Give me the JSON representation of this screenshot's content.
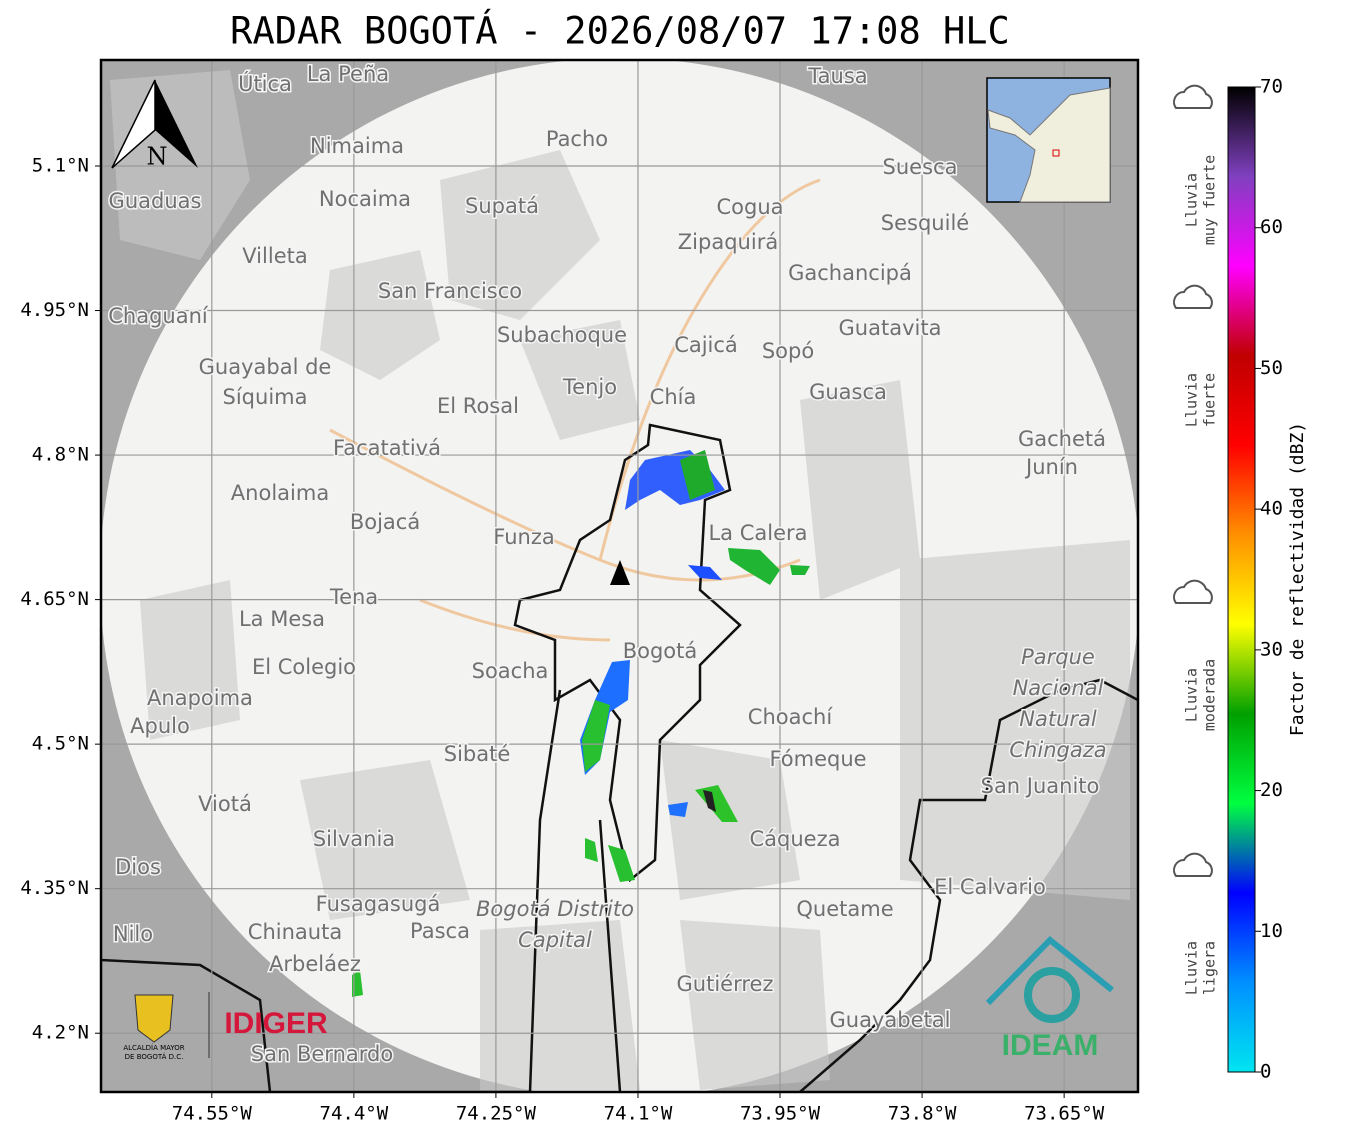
{
  "title": "RADAR BOGOTÁ - 2026/08/07 17:08 HLC",
  "map": {
    "xlim": [
      -74.667,
      -73.572
    ],
    "ylim": [
      4.139,
      5.21
    ],
    "xticks": [
      {
        "value": -74.55,
        "label": "74.55°W"
      },
      {
        "value": -74.4,
        "label": "74.4°W"
      },
      {
        "value": -74.25,
        "label": "74.25°W"
      },
      {
        "value": -74.1,
        "label": "74.1°W"
      },
      {
        "value": -73.95,
        "label": "73.95°W"
      },
      {
        "value": -73.8,
        "label": "73.8°W"
      },
      {
        "value": -73.65,
        "label": "73.65°W"
      }
    ],
    "yticks": [
      {
        "value": 4.2,
        "label": "4.2°N"
      },
      {
        "value": 4.35,
        "label": "4.35°N"
      },
      {
        "value": 4.5,
        "label": "4.5°N"
      },
      {
        "value": 4.65,
        "label": "4.65°N"
      },
      {
        "value": 4.8,
        "label": "4.8°N"
      },
      {
        "value": 4.95,
        "label": "4.95°N"
      },
      {
        "value": 5.1,
        "label": "5.1°N"
      }
    ],
    "grid": true,
    "north": "N",
    "places": [
      "La Peña",
      "Útica",
      "Tausa",
      "Pacho",
      "Nimaima",
      "Suesca",
      "Guaduas",
      "Nocaima",
      "Supatá",
      "Cogua",
      "Sesquilé",
      "Zipaquirá",
      "Villeta",
      "Gachancipá",
      "San Francisco",
      "Chaguaní",
      "Guatavita",
      "Subachoque",
      "Cajicá",
      "Sopó",
      "Guayabal de",
      "Síquima",
      "Tenjo",
      "Guasca",
      "El Rosal",
      "Chía",
      "Gachetá",
      "Facatativá",
      "Junín",
      "Anolaima",
      "Bojacá",
      "Funza",
      "La Calera",
      "Tena",
      "La Mesa",
      "Bogotá",
      "El Colegio",
      "Soacha",
      "Anapoima",
      "Apulo",
      "Choachí",
      "Sibaté",
      "Fómeque",
      "San Juanito",
      "Viotá",
      "Silvania",
      "Cáqueza",
      "Dios",
      "El Calvario",
      "Fusagasugá",
      "Quetame",
      "Nilo",
      "Chinauta",
      "Pasca",
      "Arbeláez",
      "Gutiérrez",
      "Guayabetal",
      "San Bernardo"
    ],
    "protected_areas": [
      [
        "Bogotá Distrito",
        "Capital"
      ],
      [
        "Parque",
        "Nacional",
        "Natural",
        "Chingaza"
      ]
    ]
  },
  "logos": {
    "alcaldia": [
      "ALCALDÍA MAYOR",
      "DE BOGOTÁ D.C."
    ],
    "idiger": "IDIGER",
    "ideam": "IDEAM"
  },
  "colorbar": {
    "label": "Factor de reflectividad (dBZ)",
    "lim": [
      0,
      70
    ],
    "ticks": [
      0,
      10,
      20,
      30,
      40,
      50,
      60,
      70
    ],
    "colors": [
      "#00e5f0",
      "#0090ff",
      "#0000ff",
      "#00ff40",
      "#00a000",
      "#ffff00",
      "#ff9000",
      "#ff0000",
      "#c00000",
      "#ff00ff",
      "#8040c0",
      "#000000"
    ]
  },
  "rain_categories": [
    [
      "Lluvia",
      "muy fuerte"
    ],
    [
      "Lluvia",
      "fuerte"
    ],
    [
      "Lluvia",
      "moderada"
    ],
    [
      "Lluvia",
      "ligera"
    ]
  ]
}
